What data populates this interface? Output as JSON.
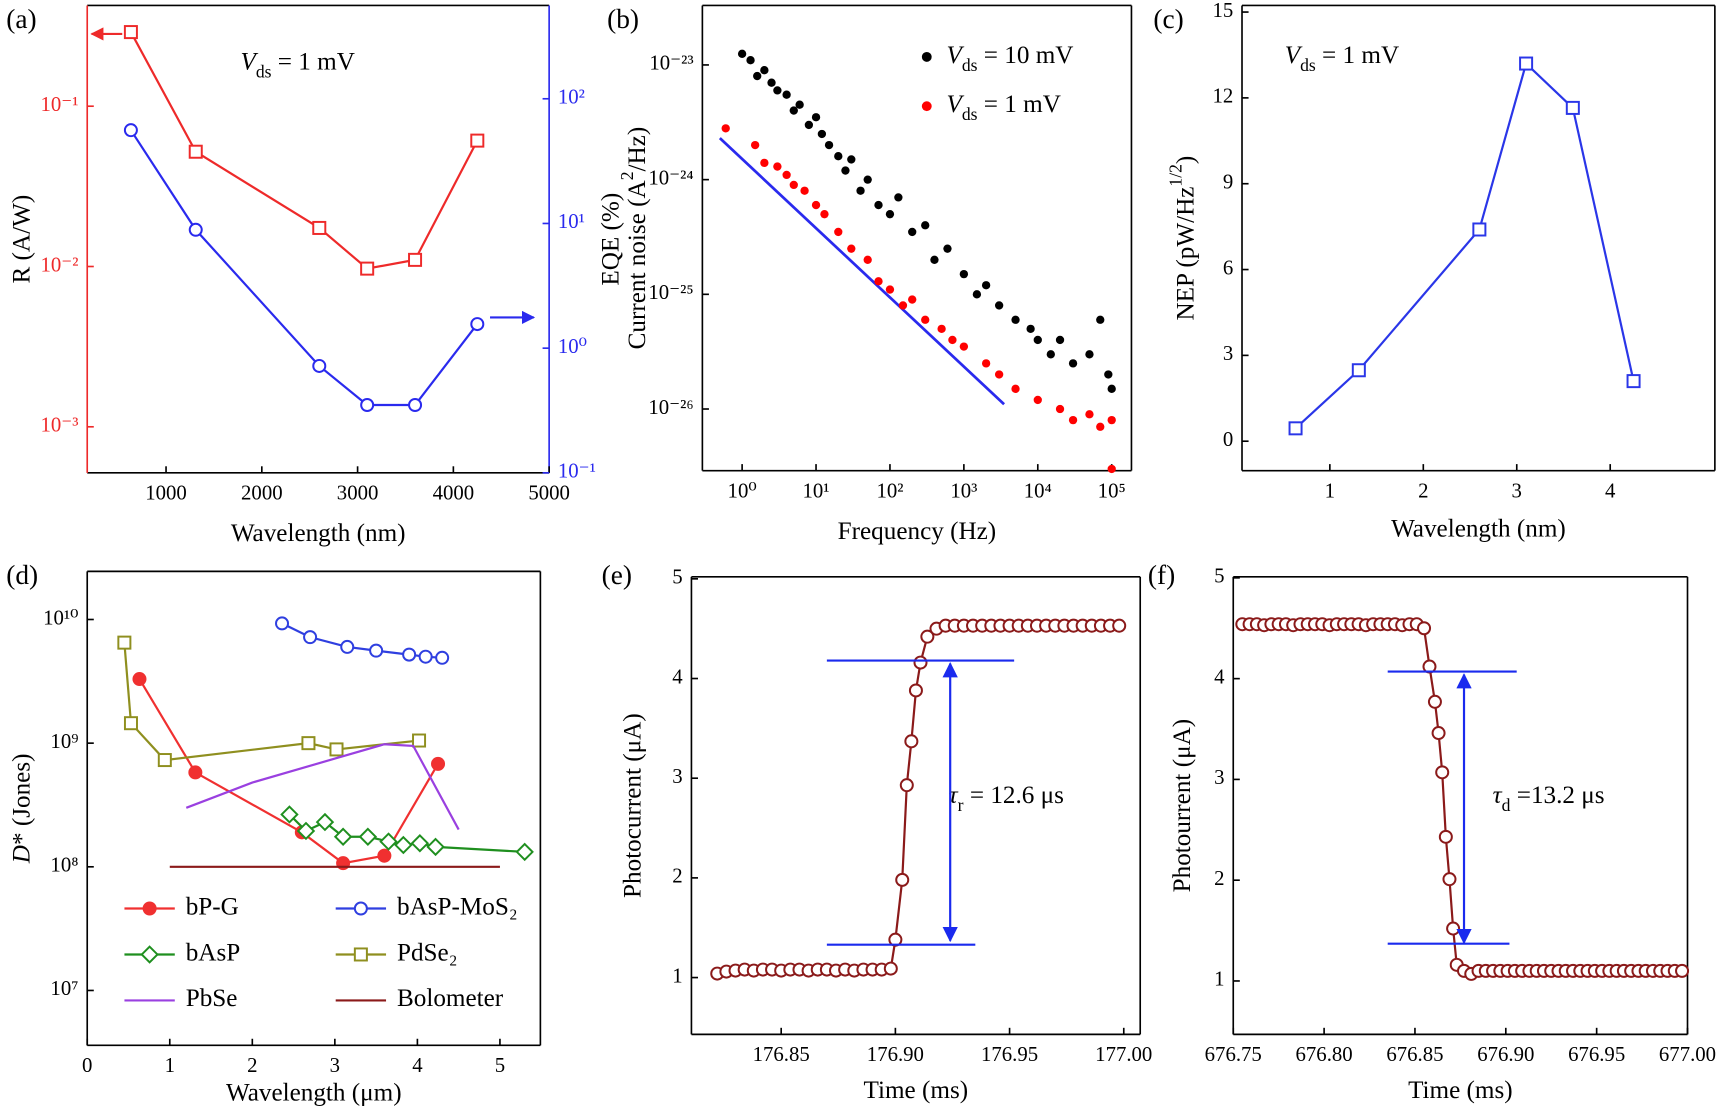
{
  "chart_data": [
    {
      "type": "line",
      "panel_label": "(a)",
      "annotation": [
        {
          "italic": "V"
        },
        {
          "sub": "ds"
        },
        {
          "text": " = 1 mV"
        }
      ],
      "xlabel": "Wavelength (nm)",
      "ylabel": "R (A/W)",
      "y2label": "EQE (%)",
      "xlim": [
        177,
        5000
      ],
      "xticks": [
        1000,
        2000,
        3000,
        4000,
        5000
      ],
      "ylim": [
        0.000516,
        0.425
      ],
      "ylog": true,
      "yticks": [
        {
          "value": 0.001,
          "label": "10⁻³"
        },
        {
          "value": 0.01,
          "label": "10⁻²"
        },
        {
          "value": 0.1,
          "label": "10⁻¹"
        }
      ],
      "y2lim": [
        0.1,
        560
      ],
      "y2log": true,
      "y2ticks": [
        {
          "value": 0.1,
          "label": "10⁻¹"
        },
        {
          "value": 1,
          "label": "10⁰"
        },
        {
          "value": 10,
          "label": "10¹"
        },
        {
          "value": 100,
          "label": "10²"
        }
      ],
      "series": [
        {
          "x": [
            633,
            1310,
            2600,
            3100,
            3600,
            4250
          ],
          "values": [
            0.29,
            0.052,
            0.0174,
            0.0097,
            0.011,
            0.061
          ],
          "color": "#ee2a2a",
          "marker": "square",
          "marker_fill": false
        },
        {
          "x": [
            633,
            1310,
            2600,
            3100,
            3600,
            4250
          ],
          "values": [
            56,
            8.9,
            0.72,
            0.35,
            0.35,
            1.56
          ],
          "color": "#2a2aee",
          "marker": "circle",
          "marker_fill": false,
          "axis": "y2"
        }
      ]
    },
    {
      "type": "scatter",
      "panel_label": "(b)",
      "xlabel": "Frequency (Hz)",
      "ylabel": [
        {
          "text": "Current noise (A"
        },
        {
          "sup": "2"
        },
        {
          "text": "/Hz)"
        }
      ],
      "xlim": [
        0.29,
        185000
      ],
      "xlog": true,
      "xticks": [
        {
          "value": 1,
          "label": "10⁰"
        },
        {
          "value": 10,
          "label": "10¹"
        },
        {
          "value": 100,
          "label": "10²"
        },
        {
          "value": 1000,
          "label": "10³"
        },
        {
          "value": 10000,
          "label": "10⁴"
        },
        {
          "value": 100000,
          "label": "10⁵"
        }
      ],
      "ylim": [
        2.9e-27,
        3.3e-23
      ],
      "ylog": true,
      "yticks": [
        {
          "value": 1e-26,
          "label": "10⁻²⁶"
        },
        {
          "value": 1e-25,
          "label": "10⁻²⁵"
        },
        {
          "value": 1e-24,
          "label": "10⁻²⁴"
        },
        {
          "value": 1e-23,
          "label": "10⁻²³"
        }
      ],
      "series": [
        {
          "name": [
            {
              "italic": "V"
            },
            {
              "sub": "ds"
            },
            {
              "text": " = 10 mV"
            }
          ],
          "color": "#000000",
          "x": [
            1,
            1.3,
            1.6,
            2,
            2.5,
            3,
            4,
            5,
            6,
            8,
            10,
            12,
            15,
            20,
            25,
            30,
            40,
            50,
            70,
            100,
            130,
            200,
            300,
            400,
            600,
            1000,
            1500,
            2000,
            3000,
            5000,
            8000,
            10000,
            15000,
            20000,
            30000,
            50000,
            70000,
            90000,
            100000
          ],
          "values": [
            1.25e-23,
            1.1e-23,
            8e-24,
            9e-24,
            7e-24,
            6e-24,
            5.5e-24,
            4e-24,
            4.5e-24,
            3e-24,
            3.5e-24,
            2.5e-24,
            2e-24,
            1.6e-24,
            1.2e-24,
            1.5e-24,
            8e-25,
            1e-24,
            6e-25,
            5e-25,
            7e-25,
            3.5e-25,
            4e-25,
            2e-25,
            2.5e-25,
            1.5e-25,
            1e-25,
            1.2e-25,
            8e-26,
            6e-26,
            5e-26,
            4e-26,
            3e-26,
            4e-26,
            2.5e-26,
            3e-26,
            6e-26,
            2e-26,
            1.5e-26
          ]
        },
        {
          "name": [
            {
              "italic": "V"
            },
            {
              "sub": "ds"
            },
            {
              "text": " = 1 mV"
            }
          ],
          "color": "#ff0000",
          "x": [
            0.6,
            1.5,
            2,
            3,
            4,
            5,
            7,
            10,
            13,
            20,
            30,
            50,
            70,
            100,
            150,
            200,
            300,
            500,
            700,
            1000,
            2000,
            3000,
            5000,
            10000,
            20000,
            30000,
            50000,
            70000,
            100000,
            100000
          ],
          "values": [
            2.8e-24,
            2e-24,
            1.4e-24,
            1.3e-24,
            1.1e-24,
            9e-25,
            8e-25,
            6e-25,
            5e-25,
            3.5e-25,
            2.5e-25,
            2e-25,
            1.3e-25,
            1.1e-25,
            8e-26,
            9e-26,
            6e-26,
            5e-26,
            4e-26,
            3.5e-26,
            2.5e-26,
            2e-26,
            1.5e-26,
            1.2e-26,
            1e-26,
            8e-27,
            9e-27,
            7e-27,
            8e-27,
            3e-27
          ]
        }
      ],
      "fit_line": {
        "x": [
          0.5,
          3500
        ],
        "values": [
          2.3e-24,
          1.1e-26
        ],
        "color": "#2a2aee"
      }
    },
    {
      "type": "line",
      "panel_label": "(c)",
      "annotation": [
        {
          "italic": "V"
        },
        {
          "sub": "ds"
        },
        {
          "text": " = 1 mV"
        }
      ],
      "xlabel": "Wavelength (nm)",
      "ylabel": [
        {
          "text": "NEP (pW/Hz"
        },
        {
          "sup": "1/2"
        },
        {
          "text": ")"
        }
      ],
      "xlim": [
        0.06,
        5.12
      ],
      "xticks": [
        1,
        2,
        3,
        4
      ],
      "ylim": [
        -1.03,
        15.23
      ],
      "yticks": [
        0,
        3,
        6,
        9,
        12,
        15
      ],
      "series": [
        {
          "x": [
            0.633,
            1.31,
            2.6,
            3.1,
            3.6,
            4.25
          ],
          "values": [
            0.45,
            2.48,
            7.4,
            13.2,
            11.65,
            2.1
          ],
          "color": "#2a36e8",
          "marker": "square",
          "marker_fill": false
        }
      ]
    },
    {
      "type": "line",
      "panel_label": "(d)",
      "xlabel": "Wavelength (μm)",
      "ylabel": [
        {
          "italic": "D"
        },
        {
          "text": "* (Jones)"
        }
      ],
      "xlim": [
        0,
        5.49
      ],
      "xticks": [
        0,
        1,
        2,
        3,
        4,
        5
      ],
      "ylim": [
        3600000,
        24500000000
      ],
      "ylog": true,
      "yticks": [
        {
          "value": 10000000,
          "label": "10⁷"
        },
        {
          "value": 100000000,
          "label": "10⁸"
        },
        {
          "value": 1000000000,
          "label": "10⁹"
        },
        {
          "value": 10000000000,
          "label": "10¹⁰"
        }
      ],
      "series": [
        {
          "name": "bP-G",
          "color": "#f03030",
          "marker": "circle",
          "marker_fill": true,
          "x": [
            0.633,
            1.31,
            2.6,
            3.1,
            3.6,
            4.25
          ],
          "values": [
            3300000000,
            580000000,
            190000000,
            107000000,
            123000000,
            680000000
          ]
        },
        {
          "name": "bAsP-MoS₂",
          "color": "#2f3fe0",
          "marker": "circle",
          "marker_fill": false,
          "x": [
            2.36,
            2.7,
            3.15,
            3.5,
            3.9,
            4.1,
            4.3
          ],
          "values": [
            9300000000,
            7200000000,
            6000000000,
            5600000000,
            5200000000,
            5000000000,
            4900000000
          ]
        },
        {
          "name": "bAsP",
          "color": "#1f8f1f",
          "marker": "diamond",
          "marker_fill": false,
          "x": [
            2.45,
            2.65,
            2.88,
            3.1,
            3.4,
            3.65,
            3.83,
            4.03,
            4.22,
            5.3
          ],
          "values": [
            265000000,
            195000000,
            230000000,
            175000000,
            175000000,
            160000000,
            150000000,
            155000000,
            145000000,
            132000000
          ]
        },
        {
          "name": "PdSe₂",
          "color": "#8f8f1f",
          "marker": "square",
          "marker_fill": false,
          "x": [
            0.45,
            0.53,
            0.94,
            2.68,
            3.02,
            4.02
          ],
          "values": [
            6500000000,
            1450000000,
            730000000,
            1000000000,
            890000000,
            1050000000
          ]
        },
        {
          "name": "PbSe",
          "color": "#9a40e0",
          "x": [
            1.2,
            2.0,
            3.0,
            3.6,
            3.95,
            4.5
          ],
          "values": [
            300000000,
            480000000,
            750000000,
            980000000,
            950000000,
            200000000
          ]
        },
        {
          "name": "Bolometer",
          "color": "#8b1a1a",
          "x": [
            1,
            5
          ],
          "values": [
            100000000,
            100000000
          ]
        }
      ]
    },
    {
      "type": "line",
      "panel_label": "(e)",
      "annotation": [
        {
          "italic": "τ"
        },
        {
          "sub": "r"
        },
        {
          "text": " = 12.6 μs"
        }
      ],
      "xlabel": "Time (ms)",
      "ylabel": "Photocurrent (μA)",
      "xlim": [
        176.8107,
        177.0072
      ],
      "xticks": [
        176.85,
        {
          "value": 176.9,
          "label": "176.90"
        },
        176.95,
        {
          "value": 177,
          "label": "177.00"
        }
      ],
      "ylim": [
        0.43,
        5.02
      ],
      "yticks": [
        1,
        2,
        3,
        4,
        5
      ],
      "series": [
        {
          "color": "#8b1a1a",
          "marker": "circle",
          "marker_fill": false,
          "x": [
            176.822,
            176.826,
            176.83,
            176.834,
            176.838,
            176.842,
            176.846,
            176.85,
            176.854,
            176.858,
            176.862,
            176.866,
            176.87,
            176.874,
            176.878,
            176.882,
            176.886,
            176.89,
            176.894,
            176.898,
            176.9,
            176.903,
            176.905,
            176.907,
            176.909,
            176.911,
            176.914,
            176.918,
            176.922,
            176.926,
            176.93,
            176.934,
            176.938,
            176.942,
            176.946,
            176.95,
            176.954,
            176.958,
            176.962,
            176.966,
            176.97,
            176.974,
            176.978,
            176.982,
            176.986,
            176.99,
            176.994,
            176.998
          ],
          "values": [
            1.04,
            1.06,
            1.07,
            1.08,
            1.07,
            1.08,
            1.08,
            1.07,
            1.08,
            1.08,
            1.07,
            1.08,
            1.08,
            1.07,
            1.08,
            1.07,
            1.08,
            1.08,
            1.08,
            1.09,
            1.38,
            1.98,
            2.93,
            3.37,
            3.88,
            4.16,
            4.42,
            4.5,
            4.53,
            4.53,
            4.53,
            4.53,
            4.53,
            4.53,
            4.53,
            4.53,
            4.53,
            4.53,
            4.53,
            4.53,
            4.53,
            4.53,
            4.53,
            4.53,
            4.53,
            4.53,
            4.53,
            4.53
          ]
        }
      ],
      "guide_color": "#1a2aee",
      "guides": [
        {
          "x": [
            176.87,
            176.952
          ],
          "y": 4.18
        },
        {
          "x": [
            176.87,
            176.935
          ],
          "y": 1.33
        }
      ],
      "arrow": {
        "x": 176.924,
        "y": [
          4.15,
          1.37
        ]
      }
    },
    {
      "type": "line",
      "panel_label": "(f)",
      "annotation": [
        {
          "italic": "τ"
        },
        {
          "sub": "d"
        },
        {
          "text": " =13.2 μs"
        }
      ],
      "xlabel": "Time (ms)",
      "ylabel": "Photourrent (μA)",
      "xlim": [
        676.75,
        677
      ],
      "xticks": [
        676.75,
        {
          "value": 676.8,
          "label": "676.80"
        },
        676.85,
        {
          "value": 676.9,
          "label": "676.90"
        },
        676.95,
        {
          "value": 677,
          "label": "677.00"
        }
      ],
      "ylim": [
        0.47,
        5.01
      ],
      "yticks": [
        1,
        2,
        3,
        4,
        5
      ],
      "series": [
        {
          "color": "#8b1a1a",
          "marker": "circle",
          "marker_fill": false,
          "x": [
            676.755,
            676.759,
            676.763,
            676.767,
            676.771,
            676.775,
            676.779,
            676.783,
            676.787,
            676.791,
            676.795,
            676.799,
            676.803,
            676.807,
            676.811,
            676.815,
            676.819,
            676.823,
            676.827,
            676.831,
            676.835,
            676.839,
            676.843,
            676.847,
            676.851,
            676.855,
            676.858,
            676.861,
            676.863,
            676.865,
            676.867,
            676.869,
            676.871,
            676.873,
            676.877,
            676.881,
            676.885,
            676.889,
            676.893,
            676.897,
            676.901,
            676.905,
            676.909,
            676.913,
            676.917,
            676.921,
            676.925,
            676.929,
            676.933,
            676.937,
            676.941,
            676.945,
            676.949,
            676.953,
            676.957,
            676.961,
            676.965,
            676.969,
            676.973,
            676.977,
            676.981,
            676.985,
            676.989,
            676.993,
            676.997
          ],
          "values": [
            4.54,
            4.54,
            4.54,
            4.53,
            4.54,
            4.54,
            4.54,
            4.53,
            4.54,
            4.54,
            4.54,
            4.54,
            4.53,
            4.54,
            4.54,
            4.54,
            4.54,
            4.53,
            4.54,
            4.54,
            4.54,
            4.54,
            4.53,
            4.54,
            4.54,
            4.5,
            4.12,
            3.77,
            3.46,
            3.07,
            2.43,
            2.01,
            1.52,
            1.16,
            1.1,
            1.07,
            1.1,
            1.1,
            1.1,
            1.1,
            1.1,
            1.1,
            1.1,
            1.1,
            1.1,
            1.1,
            1.1,
            1.1,
            1.1,
            1.1,
            1.1,
            1.1,
            1.1,
            1.1,
            1.1,
            1.1,
            1.1,
            1.1,
            1.1,
            1.1,
            1.1,
            1.1,
            1.1,
            1.1,
            1.1
          ]
        }
      ],
      "guide_color": "#1a2aee",
      "guides": [
        {
          "x": [
            676.835,
            676.906
          ],
          "y": 4.07
        },
        {
          "x": [
            676.835,
            676.902
          ],
          "y": 1.37
        }
      ],
      "arrow": {
        "x": 676.877,
        "y": [
          4.04,
          1.38
        ]
      }
    }
  ]
}
